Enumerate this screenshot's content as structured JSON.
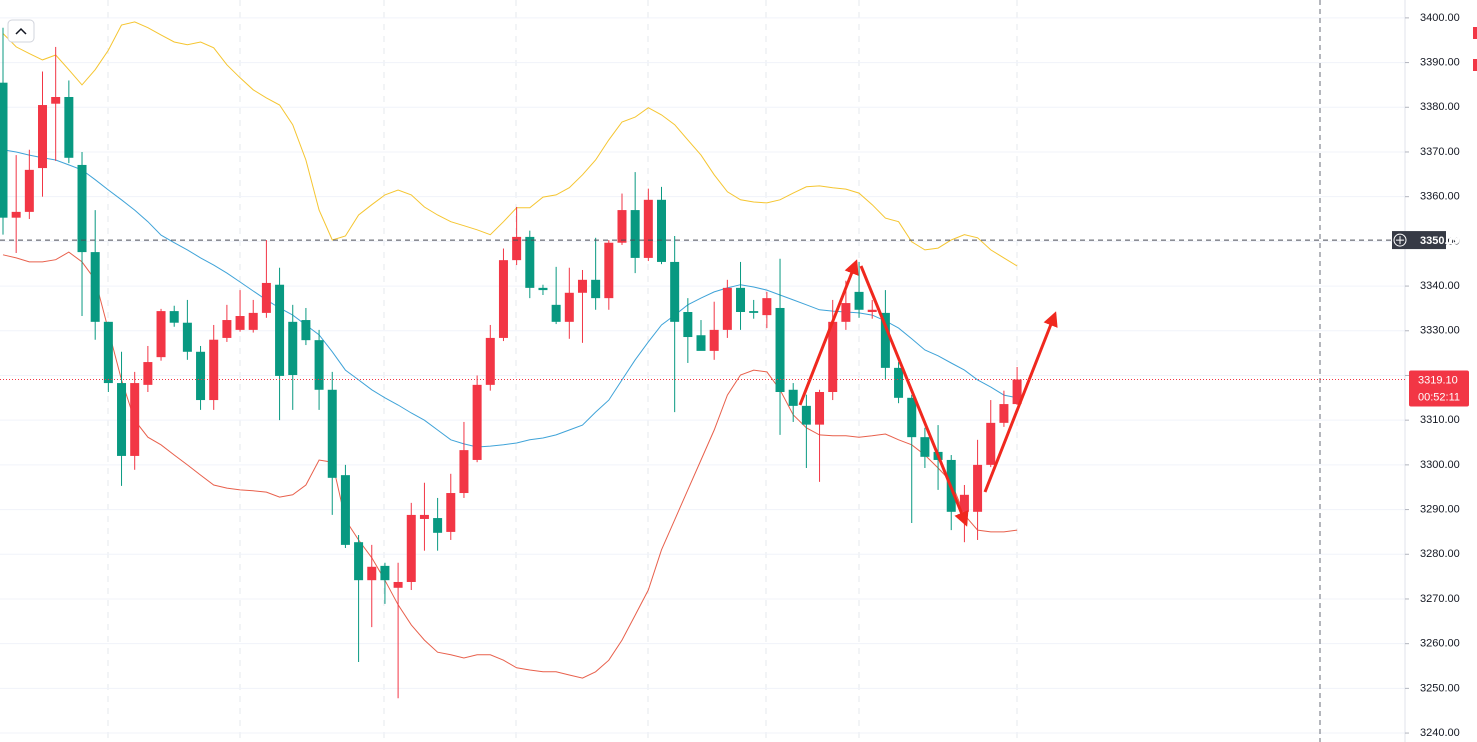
{
  "chart_data": {
    "type": "candlestick",
    "up_color": "#f23645",
    "down_color": "#089981",
    "open": [
      3385.5,
      3355.3,
      3356.6,
      3366.4,
      3380.8,
      3382.3,
      3367.1,
      3347.6,
      3332,
      3318.3,
      3302,
      3317.9,
      3324.1,
      3334.4,
      3331.8,
      3325.3,
      3314.5,
      3328.4,
      3330.2,
      3330.2,
      3334,
      3340.3,
      3332,
      3332.4,
      3327.9,
      3316.8,
      3297.7,
      3282.7,
      3274.2,
      3277.4,
      3272.5,
      3273.8,
      3287.9,
      3288.1,
      3285,
      3293.7,
      3301.1,
      3317.9,
      3328.4,
      3345.8,
      3351,
      3339.6,
      3335.8,
      3332,
      3338.5,
      3341.4,
      3337.3,
      3349.7,
      3357,
      3346.3,
      3359.3,
      3345.4,
      3334.2,
      3329,
      3325.5,
      3330.2,
      3339.6,
      3334.4,
      3333.5,
      3335.1,
      3316.8,
      3313.2,
      3309,
      3316.3,
      3332,
      3338.7,
      3334.2,
      3334,
      3321.7,
      3315,
      3306.2,
      3302.9,
      3301.1,
      3289.5,
      3289.5,
      3300,
      3309.4,
      3313.6
    ],
    "high": [
      3397.8,
      3369.3,
      3370.5,
      3388,
      3393.5,
      3386,
      3370,
      3357,
      3332,
      3325.3,
      3320.8,
      3326.6,
      3334.9,
      3335.6,
      3336.9,
      3326.6,
      3331.3,
      3335.8,
      3339.1,
      3336.9,
      3350.3,
      3344.1,
      3335.8,
      3335.1,
      3330.2,
      3320.8,
      3300,
      3284.3,
      3282.1,
      3278.1,
      3278.1,
      3291.5,
      3296,
      3292.6,
      3298,
      3309.6,
      3320,
      3331.3,
      3348.4,
      3357.7,
      3352.4,
      3340.3,
      3344.3,
      3344.1,
      3343.6,
      3350.8,
      3350.3,
      3360.7,
      3365.5,
      3361.8,
      3362.2,
      3351.2,
      3337.3,
      3332.4,
      3336.5,
      3341.4,
      3345.4,
      3336.9,
      3338.7,
      3346.1,
      3318.3,
      3315.7,
      3316.8,
      3336.9,
      3341.2,
      3345.4,
      3336.9,
      3339.1,
      3323,
      3315.7,
      3308.3,
      3308.9,
      3302.2,
      3295.5,
      3305.6,
      3314.5,
      3316.6,
      3321.9
    ],
    "low": [
      3351.5,
      3347.4,
      3355,
      3360,
      3368,
      3367.5,
      3333.3,
      3328,
      3316.3,
      3295.3,
      3298.9,
      3316.3,
      3323.3,
      3330.9,
      3323.5,
      3312.3,
      3312.3,
      3327.5,
      3329.8,
      3329.6,
      3332.9,
      3310,
      3312.3,
      3326.8,
      3312.3,
      3288.8,
      3281.4,
      3255.9,
      3263.7,
      3268.9,
      3247.8,
      3272,
      3280.8,
      3280.8,
      3283.2,
      3292.6,
      3300.6,
      3316.6,
      3327.7,
      3344.7,
      3337.3,
      3338,
      3331.5,
      3328.2,
      3327.3,
      3334.7,
      3334.7,
      3349.2,
      3342.9,
      3345.6,
      3344.9,
      3311.8,
      3322.8,
      3325.7,
      3323.5,
      3328.4,
      3330.2,
      3332.7,
      3330.6,
      3306.7,
      3309.6,
      3299.3,
      3296.2,
      3314.5,
      3330.2,
      3332.9,
      3332.7,
      3319.2,
      3313.8,
      3287,
      3299.3,
      3294.4,
      3285.4,
      3282.7,
      3283.2,
      3299.5,
      3308.5,
      3313.4
    ],
    "close": [
      3355.3,
      3356.6,
      3366,
      3380.5,
      3382.3,
      3368.7,
      3347.6,
      3332,
      3318.3,
      3302,
      3318.3,
      3323,
      3334.4,
      3331.8,
      3325.3,
      3314.5,
      3328,
      3332.4,
      3333.3,
      3334,
      3340.7,
      3319.9,
      3320.1,
      3327.9,
      3316.8,
      3297.1,
      3282.1,
      3274.2,
      3277.2,
      3274.2,
      3273.8,
      3288.8,
      3288.8,
      3284.8,
      3293.7,
      3303.3,
      3317.9,
      3328.4,
      3345.8,
      3351,
      3339.6,
      3339.1,
      3332,
      3338.5,
      3341.4,
      3337.3,
      3349.7,
      3357,
      3346.3,
      3359.3,
      3345.4,
      3332,
      3328.6,
      3325.5,
      3330.2,
      3339.6,
      3334.2,
      3334,
      3337.3,
      3316.3,
      3313.2,
      3309,
      3316.3,
      3332,
      3336.2,
      3334.7,
      3334.7,
      3321.7,
      3315,
      3306.2,
      3301.8,
      3301.1,
      3289.5,
      3293.3,
      3300,
      3309.4,
      3313.6,
      3319.1
    ],
    "overlays": [
      {
        "color": "#f5c530",
        "values": [
          3396.5,
          3393.5,
          3392.0,
          3390.6,
          3391.7,
          3388.4,
          3385.0,
          3388.4,
          3392.8,
          3398.4,
          3399.1,
          3397.8,
          3396.2,
          3394.6,
          3394.0,
          3394.6,
          3393.3,
          3389.5,
          3386.6,
          3383.9,
          3382.1,
          3380.5,
          3376.1,
          3368.2,
          3357.0,
          3350.3,
          3351.2,
          3355.9,
          3358.2,
          3360.4,
          3361.5,
          3360.4,
          3357.7,
          3355.9,
          3354.4,
          3353.5,
          3352.6,
          3351.5,
          3354.4,
          3357.5,
          3357.5,
          3359.9,
          3360.4,
          3362.0,
          3364.9,
          3368.2,
          3372.7,
          3376.7,
          3377.8,
          3379.9,
          3378.3,
          3376.1,
          3372.7,
          3369.3,
          3364.9,
          3361.1,
          3359.3,
          3358.8,
          3358.6,
          3359.3,
          3360.8,
          3362.2,
          3362.4,
          3362.0,
          3361.7,
          3360.8,
          3358.2,
          3355.2,
          3354.4,
          3349.9,
          3348.1,
          3348.5,
          3350.3,
          3351.5,
          3350.8,
          3348.1,
          3346.3,
          3344.5
        ]
      },
      {
        "color": "#3fa3d8",
        "values": [
          3370.5,
          3370.0,
          3369.3,
          3368.7,
          3368.2,
          3367.1,
          3366.0,
          3363.8,
          3361.5,
          3359.3,
          3357.0,
          3354.4,
          3351.4,
          3349.7,
          3348.1,
          3346.3,
          3344.7,
          3342.9,
          3340.9,
          3338.9,
          3336.9,
          3335.1,
          3333.5,
          3331.3,
          3329.1,
          3325.3,
          3321.2,
          3319.0,
          3316.8,
          3315.0,
          3313.4,
          3311.6,
          3310.0,
          3307.8,
          3305.6,
          3304.7,
          3304.0,
          3304.2,
          3304.5,
          3304.9,
          3305.6,
          3306.0,
          3306.7,
          3307.8,
          3308.9,
          3311.8,
          3314.5,
          3319.0,
          3323.5,
          3327.5,
          3331.3,
          3333.5,
          3335.8,
          3337.3,
          3338.7,
          3339.6,
          3340.3,
          3339.8,
          3339.1,
          3338.0,
          3336.9,
          3335.8,
          3334.7,
          3334.4,
          3334.2,
          3334.0,
          3333.5,
          3332.2,
          3330.6,
          3328.2,
          3325.7,
          3324.4,
          3322.8,
          3321.2,
          3319.0,
          3317.4,
          3315.6,
          3315.0
        ]
      },
      {
        "color": "#e8604c",
        "values": [
          3347.0,
          3346.3,
          3345.4,
          3345.4,
          3345.9,
          3347.6,
          3345.4,
          3341.4,
          3330.2,
          3319.0,
          3310.0,
          3306.2,
          3304.5,
          3302.2,
          3300.0,
          3297.7,
          3295.5,
          3294.8,
          3294.4,
          3294.2,
          3293.9,
          3292.8,
          3293.3,
          3295.5,
          3301.1,
          3300.6,
          3287.7,
          3283.2,
          3279.2,
          3274.2,
          3268.7,
          3264.2,
          3260.8,
          3258.1,
          3257.5,
          3256.8,
          3257.5,
          3257.5,
          3256.3,
          3254.6,
          3254.1,
          3253.7,
          3253.7,
          3253.0,
          3252.3,
          3253.7,
          3256.3,
          3260.8,
          3266.4,
          3272.0,
          3281.0,
          3287.7,
          3294.4,
          3301.1,
          3307.8,
          3315.6,
          3320.1,
          3321.2,
          3320.8,
          3316.8,
          3311.2,
          3308.3,
          3306.7,
          3306.5,
          3306.5,
          3306.2,
          3306.5,
          3306.9,
          3305.6,
          3304.5,
          3302.2,
          3299.3,
          3296.2,
          3288.8,
          3285.4,
          3285.0,
          3285.0,
          3285.4
        ]
      }
    ],
    "ylim": [
      3238,
      3404
    ],
    "yticks": [
      {
        "value": 3400,
        "label": "3400.00"
      },
      {
        "value": 3390,
        "label": "3390.00"
      },
      {
        "value": 3380,
        "label": "3380.00"
      },
      {
        "value": 3370,
        "label": "3370.00"
      },
      {
        "value": 3360,
        "label": "3360.00"
      },
      {
        "value": 3350,
        "label": "3350.00"
      },
      {
        "value": 3340,
        "label": "3340.00"
      },
      {
        "value": 3330,
        "label": "3330.00"
      },
      {
        "value": 3320,
        "label": "3320.00"
      },
      {
        "value": 3310,
        "label": "3310.00"
      },
      {
        "value": 3300,
        "label": "3300.00"
      },
      {
        "value": 3290,
        "label": "3290.00"
      },
      {
        "value": 3280,
        "label": "3280.00"
      },
      {
        "value": 3270,
        "label": "3270.00"
      },
      {
        "value": 3260,
        "label": "3260.00"
      },
      {
        "value": 3250,
        "label": "3250.00"
      },
      {
        "value": 3240,
        "label": "3240.00"
      }
    ],
    "grid": true,
    "crosshair_price": 3350.29,
    "last_price": {
      "value": 3319.1,
      "label": "3319.10"
    },
    "countdown": "00:52:11"
  }
}
